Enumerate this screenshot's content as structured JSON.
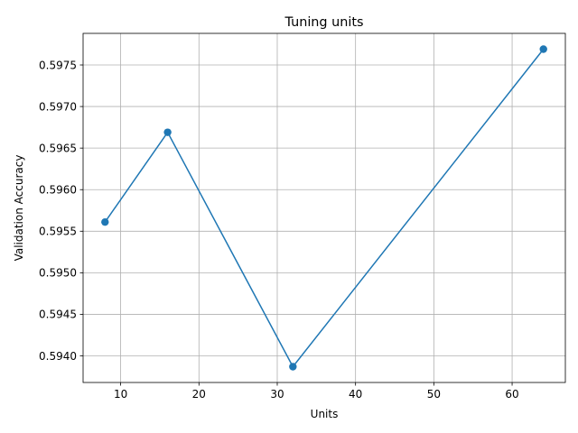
{
  "chart_data": {
    "type": "line",
    "title": "Tuning units",
    "xlabel": "Units",
    "ylabel": "Validation Accuracy",
    "x": [
      8,
      16,
      32,
      64
    ],
    "series": [
      {
        "values": [
          0.59561,
          0.59669,
          0.59387,
          0.59769
        ],
        "color": "#1f77b4",
        "marker": "circle"
      }
    ],
    "xlim": [
      5.2,
      66.8
    ],
    "ylim": [
      0.59368,
      0.59788
    ],
    "xticks": [
      10,
      20,
      30,
      40,
      50,
      60
    ],
    "xtick_labels": [
      "10",
      "20",
      "30",
      "40",
      "50",
      "60"
    ],
    "yticks": [
      0.594,
      0.5945,
      0.595,
      0.5955,
      0.596,
      0.5965,
      0.597,
      0.5975
    ],
    "ytick_labels": [
      "0.5940",
      "0.5945",
      "0.5950",
      "0.5955",
      "0.5960",
      "0.5965",
      "0.5970",
      "0.5975"
    ],
    "grid": true
  }
}
